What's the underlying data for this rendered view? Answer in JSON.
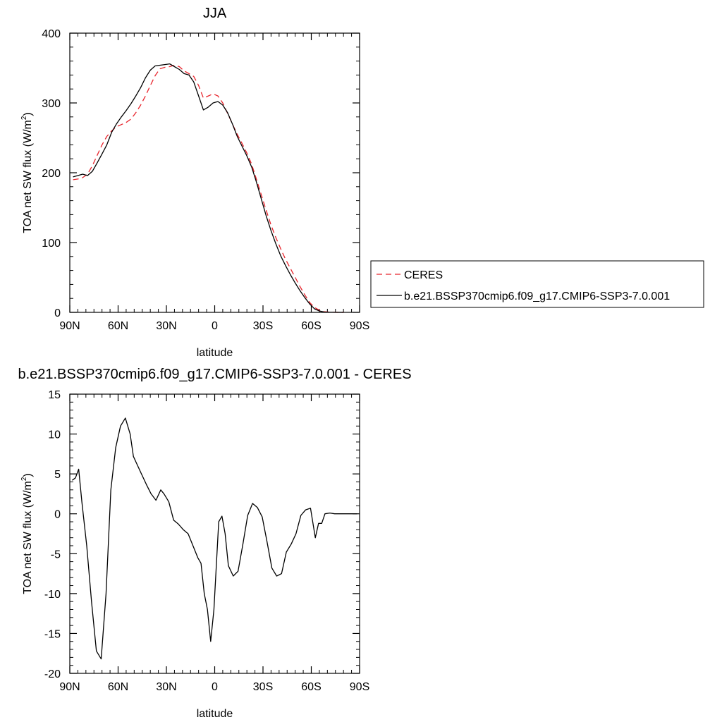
{
  "chart_data": [
    {
      "type": "line",
      "title": "JJA",
      "xlabel": "latitude",
      "ylabel_main": "TOA net SW flux (W/m",
      "ylabel_sup": "2",
      "ylabel_close": ")",
      "xlim": [
        90,
        -90
      ],
      "ylim": [
        0,
        400
      ],
      "x_ticks": [
        {
          "value": 90,
          "label": "90N"
        },
        {
          "value": 60,
          "label": "60N"
        },
        {
          "value": 30,
          "label": "30N"
        },
        {
          "value": 0,
          "label": "0"
        },
        {
          "value": -30,
          "label": "30S"
        },
        {
          "value": -60,
          "label": "60S"
        },
        {
          "value": -90,
          "label": "90S"
        }
      ],
      "y_ticks": [
        {
          "value": 0,
          "label": "0"
        },
        {
          "value": 100,
          "label": "100"
        },
        {
          "value": 200,
          "label": "200"
        },
        {
          "value": 300,
          "label": "300"
        },
        {
          "value": 400,
          "label": "400"
        }
      ],
      "legend_position": "right",
      "series": [
        {
          "name": "CERES",
          "color": "#e8242c",
          "dash": true,
          "x": [
            88,
            85,
            82,
            79,
            76,
            73,
            70,
            67,
            64,
            61,
            58,
            55,
            52,
            49,
            46,
            43,
            40,
            37,
            34,
            31,
            28,
            25,
            22,
            19,
            16,
            13,
            10,
            7,
            4,
            1,
            -2,
            -5,
            -8,
            -11,
            -14,
            -17,
            -20,
            -23,
            -26,
            -29,
            -32,
            -35,
            -38,
            -41,
            -44,
            -47,
            -50,
            -53,
            -56,
            -59,
            -62,
            -65,
            -68,
            -71,
            -74,
            -77,
            -80
          ],
          "y": [
            190,
            191,
            193,
            198,
            210,
            225,
            240,
            252,
            260,
            266,
            269,
            272,
            277,
            286,
            297,
            310,
            325,
            339,
            349,
            351,
            352,
            354,
            352,
            346,
            342,
            338,
            325,
            307,
            310,
            313,
            310,
            300,
            285,
            270,
            255,
            242,
            228,
            212,
            190,
            168,
            146,
            125,
            107,
            91,
            76,
            63,
            50,
            37,
            25,
            14,
            7,
            3,
            1,
            0.3,
            0.1,
            0,
            0
          ]
        },
        {
          "name": "b.e21.BSSP370cmip6.f09_g17.CMIP6-SSP3-7.0.001",
          "color": "#000000",
          "dash": false,
          "x": [
            88,
            85,
            82,
            79,
            76,
            73,
            70,
            67,
            64,
            61,
            58,
            55,
            52,
            49,
            46,
            43,
            40,
            37,
            34,
            31,
            28,
            25,
            22,
            19,
            16,
            13,
            10,
            7,
            4,
            1,
            -2,
            -5,
            -8,
            -11,
            -14,
            -17,
            -20,
            -23,
            -26,
            -29,
            -32,
            -35,
            -38,
            -41,
            -44,
            -47,
            -50,
            -53,
            -56,
            -59,
            -62,
            -65,
            -68,
            -71,
            -74,
            -77,
            -80
          ],
          "y": [
            194,
            196,
            198,
            196,
            202,
            214,
            227,
            240,
            258,
            270,
            280,
            289,
            299,
            310,
            322,
            336,
            347,
            353,
            354,
            355,
            356,
            352,
            348,
            342,
            340,
            330,
            310,
            290,
            294,
            300,
            302,
            297,
            286,
            270,
            252,
            238,
            224,
            208,
            186,
            162,
            138,
            117,
            98,
            81,
            67,
            54,
            42,
            31,
            21,
            12,
            5,
            2,
            0.5,
            0.2,
            0.1,
            0,
            0
          ]
        }
      ]
    },
    {
      "type": "line",
      "title": "b.e21.BSSP370cmip6.f09_g17.CMIP6-SSP3-7.0.001 - CERES",
      "xlabel": "latitude",
      "ylabel_main": "TOA net SW flux (W/m",
      "ylabel_sup": "2",
      "ylabel_close": ")",
      "xlim": [
        90,
        -90
      ],
      "ylim": [
        -20,
        15
      ],
      "x_ticks": [
        {
          "value": 90,
          "label": "90N"
        },
        {
          "value": 60,
          "label": "60N"
        },
        {
          "value": 30,
          "label": "30N"
        },
        {
          "value": 0,
          "label": "0"
        },
        {
          "value": -30,
          "label": "30S"
        },
        {
          "value": -60,
          "label": "60S"
        },
        {
          "value": -90,
          "label": "90S"
        }
      ],
      "y_ticks": [
        {
          "value": -20,
          "label": "-20"
        },
        {
          "value": -15,
          "label": "-15"
        },
        {
          "value": -10,
          "label": "-10"
        },
        {
          "value": -5,
          "label": "-5"
        },
        {
          "value": 0,
          "label": "0"
        },
        {
          "value": 5,
          "label": "5"
        },
        {
          "value": 10,
          "label": "10"
        },
        {
          "value": 15,
          "label": "15"
        }
      ],
      "series": [
        {
          "color": "#000000",
          "dash": false,
          "x": [
            88.5,
            86.5,
            84.5,
            82.5,
            79.5,
            76.5,
            73.5,
            70.5,
            67.5,
            64.5,
            61.5,
            58.5,
            55.5,
            52.5,
            50.5,
            48.5,
            45.5,
            42.5,
            39.5,
            36.5,
            33.5,
            31.5,
            28.5,
            25.5,
            22.5,
            19.5,
            16.5,
            13.5,
            10.5,
            8.5,
            6.5,
            4.5,
            2.5,
            0.5,
            -2.5,
            -4.5,
            -6.5,
            -8.5,
            -11.5,
            -14.5,
            -17.5,
            -20.5,
            -23.5,
            -26.5,
            -29.5,
            -32.5,
            -35.5,
            -38.5,
            -41.5,
            -44.5,
            -47.5,
            -50.5,
            -53.5,
            -56.5,
            -59.5,
            -62.5,
            -64.5,
            -66.5,
            -68.5,
            -71.5,
            -74.5,
            -78.5,
            -82.5,
            -86.5,
            -88.5
          ],
          "y": [
            4.2,
            4.5,
            5.6,
            1.5,
            -4.0,
            -11.0,
            -17.2,
            -18.2,
            -10.0,
            3.0,
            8.3,
            11.0,
            12.0,
            10.0,
            7.2,
            6.3,
            5.0,
            3.7,
            2.5,
            1.7,
            3.0,
            2.5,
            1.5,
            -0.8,
            -1.3,
            -2.0,
            -2.5,
            -4.0,
            -5.5,
            -6.2,
            -10.0,
            -12.0,
            -16.0,
            -12.0,
            -1.0,
            -0.3,
            -2.5,
            -6.5,
            -7.8,
            -7.2,
            -3.8,
            -0.2,
            1.3,
            0.8,
            -0.4,
            -3.5,
            -6.8,
            -7.8,
            -7.5,
            -4.8,
            -3.8,
            -2.5,
            -0.2,
            0.5,
            0.7,
            -3.0,
            -1.2,
            -1.2,
            0.0,
            0.1,
            0.0,
            0.0,
            0.0,
            0.0,
            0.0
          ]
        }
      ]
    }
  ]
}
